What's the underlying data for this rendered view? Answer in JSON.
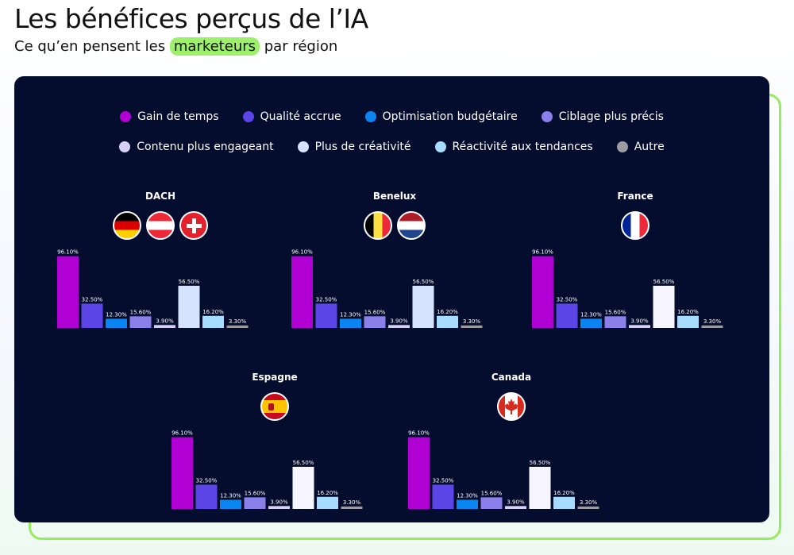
{
  "header": {
    "title": "Les bénéfices perçus de l’IA",
    "subtitle_before": "Ce qu’en pensent les",
    "subtitle_highlight": "marketeurs",
    "subtitle_after": "par région"
  },
  "legend": [
    {
      "label": "Gain de temps",
      "color": "#b000d4"
    },
    {
      "label": "Qualité accrue",
      "color": "#5b45e6"
    },
    {
      "label": "Optimisation budgétaire",
      "color": "#0a84f0"
    },
    {
      "label": "Ciblage plus précis",
      "color": "#8b80ea"
    },
    {
      "label": "Contenu plus engageant",
      "color": "#d6d0f5"
    },
    {
      "label": "Plus de créativité",
      "color": "#d5e3ff"
    },
    {
      "label": "Réactivité aux tendances",
      "color": "#a6dcff"
    },
    {
      "label": "Autre",
      "color": "#9a9aa0"
    }
  ],
  "chart_data": [
    {
      "type": "bar",
      "title": "DACH",
      "flags": [
        "germany-flag",
        "austria-flag",
        "switzerland-flag"
      ],
      "categories": [
        "Gain de temps",
        "Qualité accrue",
        "Optimisation budgétaire",
        "Ciblage plus précis",
        "Contenu plus engageant",
        "Plus de créativité",
        "Réactivité aux tendances",
        "Autre"
      ],
      "values": [
        96.1,
        32.5,
        12.3,
        15.6,
        3.9,
        56.5,
        16.2,
        3.3
      ],
      "labels": [
        "96.10%",
        "32.50%",
        "12.30%",
        "15.60%",
        "3.90%",
        "56.50%",
        "16.20%",
        "3.30%"
      ],
      "bar_colors": [
        "#b000d4",
        "#5b45e6",
        "#0a84f0",
        "#8b80ea",
        "#d6d0f5",
        "#d5e3ff",
        "#a6dcff",
        "#9a9aa0"
      ],
      "ylim": [
        0,
        100
      ]
    },
    {
      "type": "bar",
      "title": "Benelux",
      "flags": [
        "belgium-flag",
        "netherlands-flag"
      ],
      "categories": [
        "Gain de temps",
        "Qualité accrue",
        "Optimisation budgétaire",
        "Ciblage plus précis",
        "Contenu plus engageant",
        "Plus de créativité",
        "Réactivité aux tendances",
        "Autre"
      ],
      "values": [
        96.1,
        32.5,
        12.3,
        15.6,
        3.9,
        56.5,
        16.2,
        3.3
      ],
      "labels": [
        "96.10%",
        "32.50%",
        "12.30%",
        "15.60%",
        "3.90%",
        "56.50%",
        "16.20%",
        "3.30%"
      ],
      "bar_colors": [
        "#b000d4",
        "#5b45e6",
        "#0a84f0",
        "#8b80ea",
        "#d6d0f5",
        "#d5e3ff",
        "#a6dcff",
        "#9a9aa0"
      ],
      "ylim": [
        0,
        100
      ]
    },
    {
      "type": "bar",
      "title": "France",
      "flags": [
        "france-flag"
      ],
      "categories": [
        "Gain de temps",
        "Qualité accrue",
        "Optimisation budgétaire",
        "Ciblage plus précis",
        "Contenu plus engageant",
        "Plus de créativité",
        "Réactivité aux tendances",
        "Autre"
      ],
      "values": [
        96.1,
        32.5,
        12.3,
        15.6,
        3.9,
        56.5,
        16.2,
        3.3
      ],
      "labels": [
        "96.10%",
        "32.50%",
        "12.30%",
        "15.60%",
        "3.90%",
        "56.50%",
        "16.20%",
        "3.30%"
      ],
      "bar_colors": [
        "#b000d4",
        "#5b45e6",
        "#0a84f0",
        "#8b80ea",
        "#d6d0f5",
        "#f7f5ff",
        "#a6dcff",
        "#9a9aa0"
      ],
      "ylim": [
        0,
        100
      ]
    },
    {
      "type": "bar",
      "title": "Espagne",
      "flags": [
        "spain-flag"
      ],
      "categories": [
        "Gain de temps",
        "Qualité accrue",
        "Optimisation budgétaire",
        "Ciblage plus précis",
        "Contenu plus engageant",
        "Plus de créativité",
        "Réactivité aux tendances",
        "Autre"
      ],
      "values": [
        96.1,
        32.5,
        12.3,
        15.6,
        3.9,
        56.5,
        16.2,
        3.3
      ],
      "labels": [
        "96.10%",
        "32.50%",
        "12.30%",
        "15.60%",
        "3.90%",
        "56.50%",
        "16.20%",
        "3.30%"
      ],
      "bar_colors": [
        "#b000d4",
        "#5b45e6",
        "#0a84f0",
        "#8b80ea",
        "#d6d0f5",
        "#f7f5ff",
        "#a6dcff",
        "#9a9aa0"
      ],
      "ylim": [
        0,
        100
      ]
    },
    {
      "type": "bar",
      "title": "Canada",
      "flags": [
        "canada-flag"
      ],
      "categories": [
        "Gain de temps",
        "Qualité accrue",
        "Optimisation budgétaire",
        "Ciblage plus précis",
        "Contenu plus engageant",
        "Plus de créativité",
        "Réactivité aux tendances",
        "Autre"
      ],
      "values": [
        96.1,
        32.5,
        12.3,
        15.6,
        3.9,
        56.5,
        16.2,
        3.3
      ],
      "labels": [
        "96.10%",
        "32.50%",
        "12.30%",
        "15.60%",
        "3.90%",
        "56.50%",
        "16.20%",
        "3.30%"
      ],
      "bar_colors": [
        "#b000d4",
        "#5b45e6",
        "#0a84f0",
        "#8b80ea",
        "#d6d0f5",
        "#f7f5ff",
        "#a6dcff",
        "#9a9aa0"
      ],
      "ylim": [
        0,
        100
      ]
    }
  ]
}
